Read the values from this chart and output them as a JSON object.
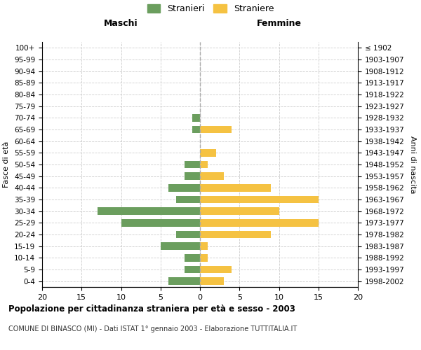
{
  "age_groups_bottom_to_top": [
    "0-4",
    "5-9",
    "10-14",
    "15-19",
    "20-24",
    "25-29",
    "30-34",
    "35-39",
    "40-44",
    "45-49",
    "50-54",
    "55-59",
    "60-64",
    "65-69",
    "70-74",
    "75-79",
    "80-84",
    "85-89",
    "90-94",
    "95-99",
    "100+"
  ],
  "birth_years_bottom_to_top": [
    "1998-2002",
    "1993-1997",
    "1988-1992",
    "1983-1987",
    "1978-1982",
    "1973-1977",
    "1968-1972",
    "1963-1967",
    "1958-1962",
    "1953-1957",
    "1948-1952",
    "1943-1947",
    "1938-1942",
    "1933-1937",
    "1928-1932",
    "1923-1927",
    "1918-1922",
    "1913-1917",
    "1908-1912",
    "1903-1907",
    "≤ 1902"
  ],
  "maschi_bottom_to_top": [
    4,
    2,
    2,
    5,
    3,
    10,
    13,
    3,
    4,
    2,
    2,
    0,
    0,
    1,
    1,
    0,
    0,
    0,
    0,
    0,
    0
  ],
  "femmine_bottom_to_top": [
    3,
    4,
    1,
    1,
    9,
    15,
    10,
    15,
    9,
    3,
    1,
    2,
    0,
    4,
    0,
    0,
    0,
    0,
    0,
    0,
    0
  ],
  "color_maschi": "#6b9e5e",
  "color_femmine": "#f5c242",
  "xlim": 20,
  "title": "Popolazione per cittadinanza straniera per età e sesso - 2003",
  "subtitle": "COMUNE DI BINASCO (MI) - Dati ISTAT 1° gennaio 2003 - Elaborazione TUTTITALIA.IT",
  "ylabel_left": "Fasce di età",
  "ylabel_right": "Anni di nascita",
  "label_maschi": "Stranieri",
  "label_femmine": "Straniere",
  "header_maschi": "Maschi",
  "header_femmine": "Femmine",
  "background_color": "#ffffff",
  "grid_color": "#cccccc",
  "centerline_color": "#aaaaaa"
}
